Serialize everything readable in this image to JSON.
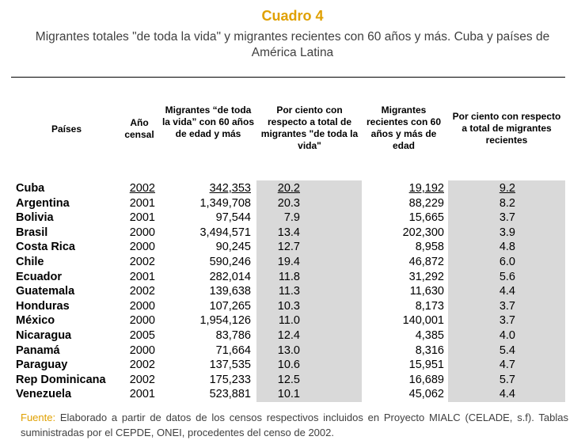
{
  "title": "Cuadro 4",
  "subtitle": "Migrantes totales \"de toda la vida\" y migrantes recientes con 60 años y más. Cuba y países de América Latina",
  "headers": {
    "country": "Países",
    "year": "Año censal",
    "lifetime": "Migrantes “de toda la vida” con 60 años de edad y más",
    "pct_lifetime": "Por ciento con respecto a total de migrantes \"de toda la vida\"",
    "recent": "Migrantes recientes con 60 años y más de edad",
    "pct_recent": "Por ciento con respecto a total de migrantes recientes"
  },
  "rows": [
    {
      "country": "Cuba",
      "year": "2002",
      "lifetime": "342,353",
      "pct_lifetime": "20.2",
      "recent": "19,192",
      "pct_recent": "9.2"
    },
    {
      "country": "Argentina",
      "year": "2001",
      "lifetime": "1,349,708",
      "pct_lifetime": "20.3",
      "recent": "88,229",
      "pct_recent": "8.2"
    },
    {
      "country": "Bolivia",
      "year": "2001",
      "lifetime": "97,544",
      "pct_lifetime": "7.9",
      "recent": "15,665",
      "pct_recent": "3.7"
    },
    {
      "country": "Brasil",
      "year": "2000",
      "lifetime": "3,494,571",
      "pct_lifetime": "13.4",
      "recent": "202,300",
      "pct_recent": "3.9"
    },
    {
      "country": "Costa Rica",
      "year": "2000",
      "lifetime": "90,245",
      "pct_lifetime": "12.7",
      "recent": "8,958",
      "pct_recent": "4.8"
    },
    {
      "country": "Chile",
      "year": "2002",
      "lifetime": "590,246",
      "pct_lifetime": "19.4",
      "recent": "46,872",
      "pct_recent": "6.0"
    },
    {
      "country": "Ecuador",
      "year": "2001",
      "lifetime": "282,014",
      "pct_lifetime": "11.8",
      "recent": "31,292",
      "pct_recent": "5.6"
    },
    {
      "country": "Guatemala",
      "year": "2002",
      "lifetime": "139,638",
      "pct_lifetime": "11.3",
      "recent": "11,630",
      "pct_recent": "4.4"
    },
    {
      "country": "Honduras",
      "year": "2000",
      "lifetime": "107,265",
      "pct_lifetime": "10.3",
      "recent": "8,173",
      "pct_recent": "3.7"
    },
    {
      "country": "México",
      "year": "2000",
      "lifetime": "1,954,126",
      "pct_lifetime": "11.0",
      "recent": "140,001",
      "pct_recent": "3.7"
    },
    {
      "country": "Nicaragua",
      "year": "2005",
      "lifetime": "83,786",
      "pct_lifetime": "12.4",
      "recent": "4,385",
      "pct_recent": "4.0"
    },
    {
      "country": "Panamá",
      "year": "2000",
      "lifetime": "71,664",
      "pct_lifetime": "13.0",
      "recent": "8,316",
      "pct_recent": "5.4"
    },
    {
      "country": "Paraguay",
      "year": "2002",
      "lifetime": "137,535",
      "pct_lifetime": "10.6",
      "recent": "15,951",
      "pct_recent": "4.7"
    },
    {
      "country": "Rep Dominicana",
      "year": "2002",
      "lifetime": "175,233",
      "pct_lifetime": "12.5",
      "recent": "16,689",
      "pct_recent": "5.7"
    },
    {
      "country": "Venezuela",
      "year": "2001",
      "lifetime": "523,881",
      "pct_lifetime": "10.1",
      "recent": "45,062",
      "pct_recent": "4.4"
    }
  ],
  "footnote": {
    "label": "Fuente:",
    "text": "Elaborado a partir de datos de los censos respectivos incluidos en Proyecto MIALC (CELADE, s.f). Tablas suministradas por el CEPDE, ONEI, procedentes del censo de 2002."
  }
}
